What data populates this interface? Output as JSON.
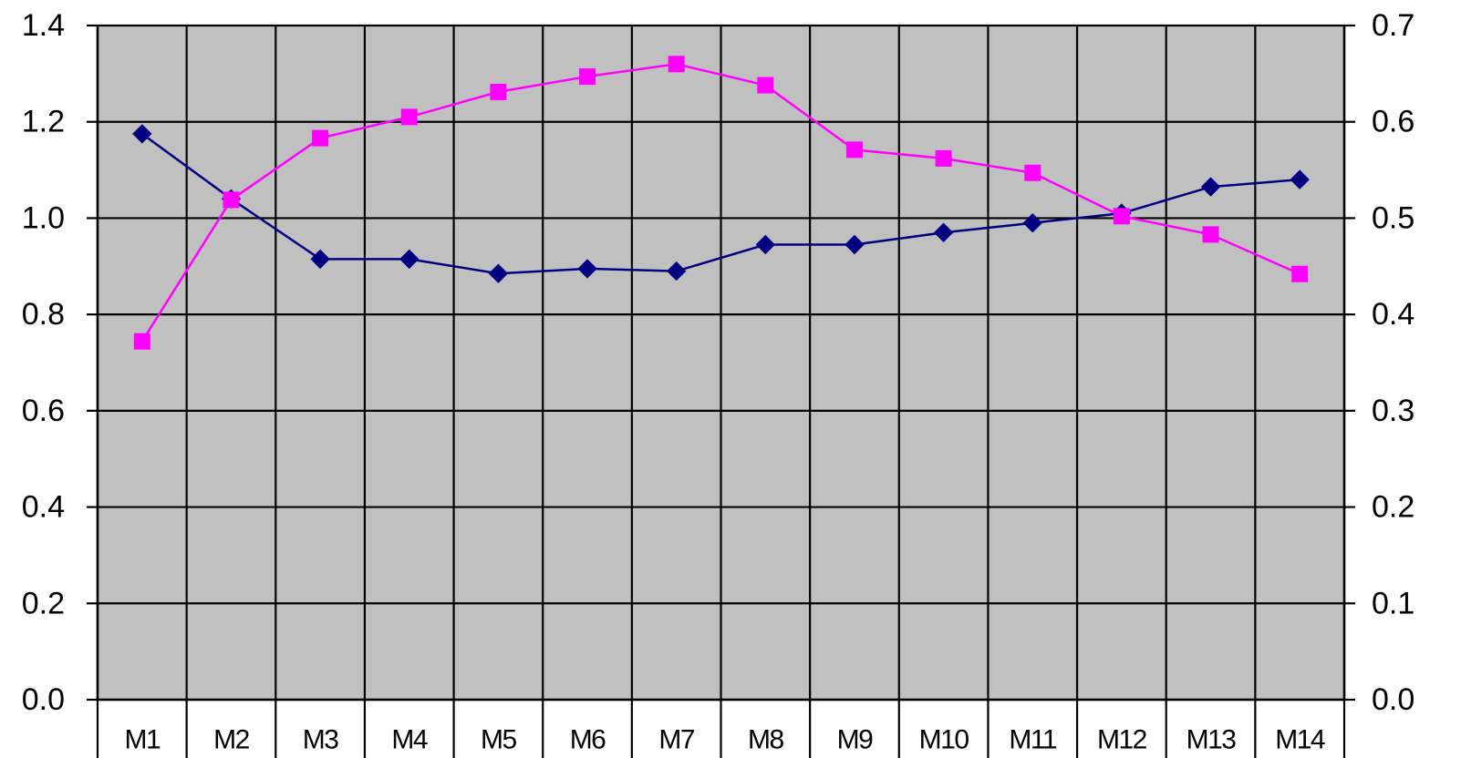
{
  "chart_data": {
    "type": "line",
    "categories": [
      "M1",
      "M2",
      "M3",
      "M4",
      "M5",
      "M6",
      "M7",
      "M8",
      "M9",
      "M10",
      "M11",
      "M12",
      "M13",
      "M14"
    ],
    "y_left": {
      "min": 0,
      "max": 1.4,
      "ticks": [
        "0.0",
        "0.2",
        "0.4",
        "0.6",
        "0.8",
        "1.0",
        "1.2",
        "1.4"
      ]
    },
    "y_right": {
      "min": 0,
      "max": 0.7,
      "ticks": [
        "0.0",
        "0.1",
        "0.2",
        "0.3",
        "0.4",
        "0.5",
        "0.6",
        "0.7"
      ]
    },
    "grid": true,
    "plot_background": "#c0c0c0",
    "series": [
      {
        "axis": "left",
        "color": "#000080",
        "marker": "diamond",
        "values": [
          1.175,
          1.04,
          0.915,
          0.915,
          0.885,
          0.895,
          0.89,
          0.945,
          0.945,
          0.97,
          0.99,
          1.01,
          1.065,
          1.08
        ]
      },
      {
        "axis": "right",
        "color": "#ff00ff",
        "marker": "square",
        "values": [
          0.372,
          0.519,
          0.583,
          0.605,
          0.631,
          0.647,
          0.66,
          0.638,
          0.571,
          0.562,
          0.547,
          0.502,
          0.483,
          0.442
        ]
      }
    ]
  }
}
